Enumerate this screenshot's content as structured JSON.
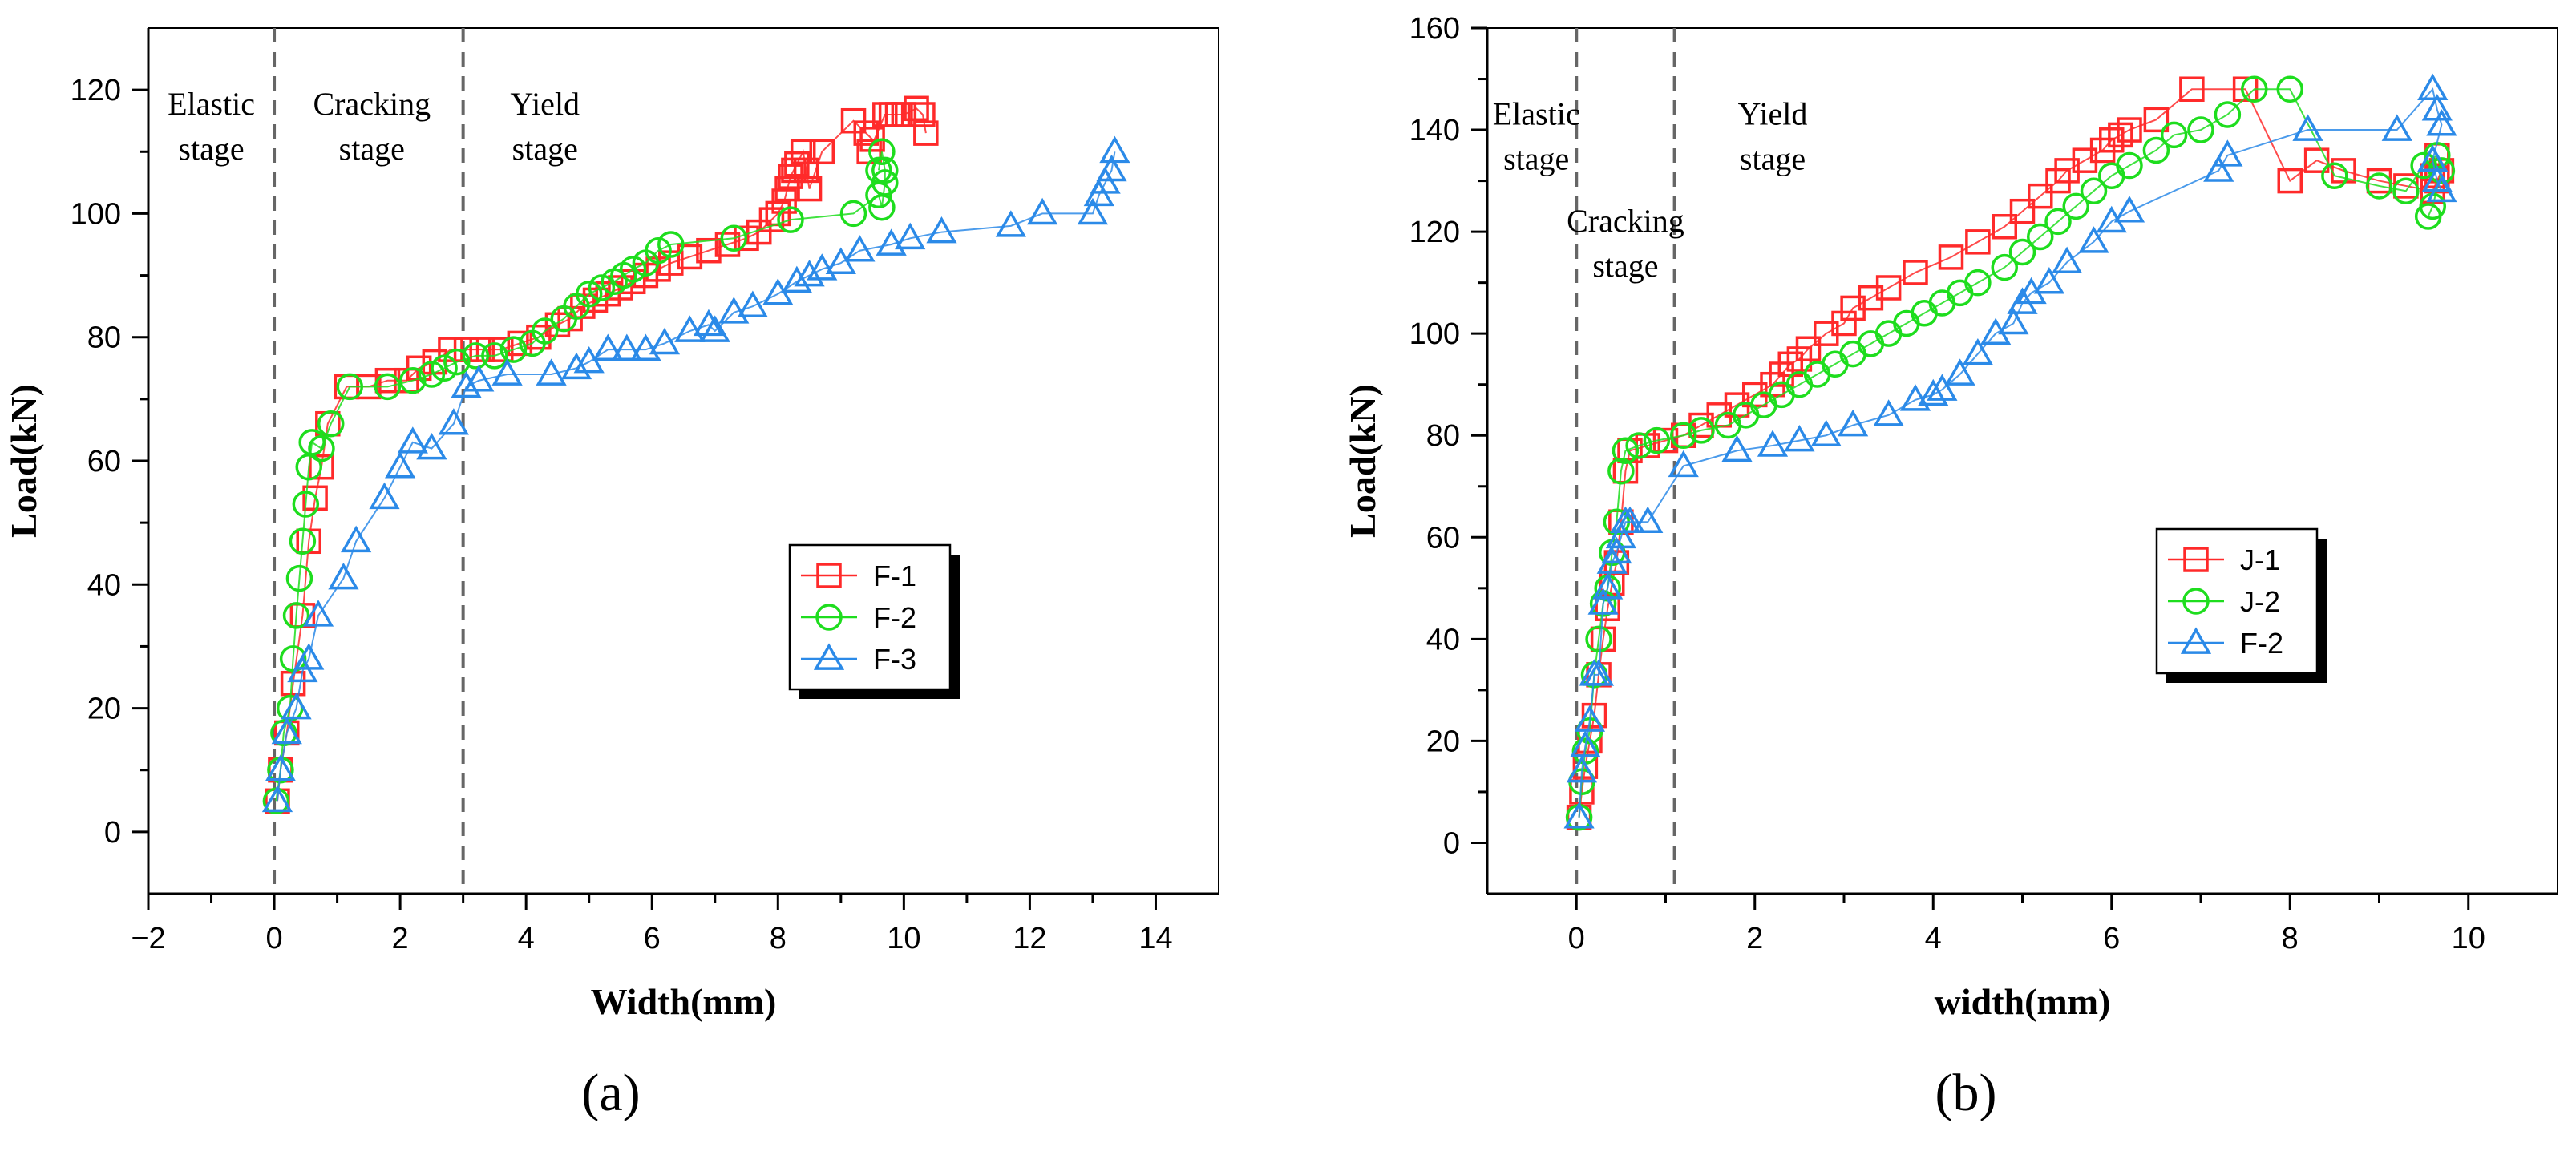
{
  "panels": [
    {
      "label": "(a)",
      "chart_data": {
        "type": "line",
        "xlabel": "Width(mm)",
        "ylabel": "Load(kN)",
        "xlim": [
          -2,
          15
        ],
        "ylim": [
          -10,
          130
        ],
        "xticks": [
          -2,
          0,
          2,
          4,
          6,
          8,
          10,
          12,
          14
        ],
        "yticks": [
          0,
          20,
          40,
          60,
          80,
          100,
          120
        ],
        "grid": false,
        "legend_position": "center-right",
        "stage_lines": [
          0,
          3
        ],
        "stage_labels": [
          {
            "lines": [
              "Elastic",
              "stage"
            ],
            "x": -1.0,
            "y": 116
          },
          {
            "lines": [
              "Cracking",
              "stage"
            ],
            "x": 1.55,
            "y": 116
          },
          {
            "lines": [
              "Yield",
              "stage"
            ],
            "x": 4.3,
            "y": 116
          }
        ],
        "series": [
          {
            "name": "F-1",
            "color": "#ff2a2a",
            "marker": "square",
            "x": [
              0.05,
              0.1,
              0.2,
              0.3,
              0.45,
              0.55,
              0.65,
              0.75,
              0.85,
              1.15,
              1.5,
              1.8,
              2.1,
              2.3,
              2.55,
              2.8,
              3.05,
              3.3,
              3.6,
              3.9,
              4.2,
              4.5,
              4.7,
              4.9,
              5.1,
              5.3,
              5.5,
              5.7,
              5.9,
              6.1,
              6.3,
              6.6,
              6.9,
              7.2,
              7.5,
              7.7,
              7.9,
              8.0,
              8.1,
              8.15,
              8.2,
              8.25,
              8.3,
              8.4,
              8.45,
              8.5,
              8.7,
              9.2,
              9.4,
              9.5,
              9.45,
              9.7,
              9.8,
              9.9,
              10.0,
              10.2,
              10.3,
              10.35
            ],
            "y": [
              5,
              10,
              16,
              24,
              35,
              47,
              54,
              59,
              66,
              72,
              72,
              73,
              73,
              75,
              76,
              78,
              78,
              78,
              78,
              79,
              80,
              82,
              83,
              85,
              86,
              87,
              88,
              89,
              90,
              91,
              92,
              93,
              94,
              95,
              96,
              97,
              99,
              100,
              102,
              104,
              106,
              107,
              108,
              110,
              107,
              104,
              110,
              115,
              113,
              112,
              110,
              116,
              116,
              116,
              116,
              117,
              116,
              113
            ]
          },
          {
            "name": "F-2",
            "color": "#1edd1e",
            "marker": "circle",
            "x": [
              0.03,
              0.1,
              0.15,
              0.25,
              0.3,
              0.35,
              0.4,
              0.45,
              0.5,
              0.55,
              0.6,
              0.75,
              0.9,
              1.2,
              1.8,
              2.2,
              2.5,
              2.7,
              2.9,
              3.2,
              3.5,
              3.8,
              4.1,
              4.3,
              4.6,
              4.8,
              5.0,
              5.2,
              5.4,
              5.55,
              5.7,
              5.9,
              6.1,
              6.3,
              7.3,
              8.2,
              9.2,
              9.6,
              9.65,
              9.7,
              9.7,
              9.65,
              9.6
            ],
            "y": [
              5,
              10,
              16,
              20,
              28,
              35,
              41,
              47,
              53,
              59,
              63,
              62,
              66,
              72,
              72,
              73,
              74,
              75,
              76,
              77,
              77,
              78,
              79,
              81,
              83,
              85,
              87,
              88,
              89,
              90,
              91,
              92,
              94,
              95,
              96,
              99,
              100,
              103,
              101,
              105,
              107,
              110,
              107
            ]
          },
          {
            "name": "F-3",
            "color": "#2b8ae8",
            "marker": "triangle",
            "x": [
              0.05,
              0.1,
              0.2,
              0.35,
              0.45,
              0.55,
              0.7,
              1.1,
              1.3,
              1.75,
              2.0,
              2.2,
              2.5,
              2.85,
              3.05,
              3.25,
              3.7,
              4.4,
              4.8,
              5.0,
              5.3,
              5.6,
              5.9,
              6.2,
              6.6,
              6.9,
              7.0,
              7.3,
              7.6,
              8.0,
              8.3,
              8.5,
              8.7,
              9.0,
              9.3,
              9.8,
              10.1,
              10.6,
              11.7,
              12.2,
              13.0,
              13.1,
              13.2,
              13.3,
              13.35
            ],
            "y": [
              5,
              10,
              16,
              20,
              26,
              28,
              35,
              41,
              47,
              54,
              59,
              63,
              62,
              66,
              72,
              73,
              74,
              74,
              75,
              76,
              78,
              78,
              78,
              79,
              81,
              82,
              81,
              84,
              85,
              87,
              89,
              90,
              91,
              92,
              94,
              95,
              96,
              97,
              98,
              100,
              100,
              103,
              105,
              107,
              110
            ]
          }
        ]
      }
    },
    {
      "label": "(b)",
      "chart_data": {
        "type": "line",
        "xlabel": "width(mm)",
        "ylabel": "Load(kN)",
        "xlim": [
          -1,
          11
        ],
        "ylim": [
          -10,
          160
        ],
        "xticks": [
          0,
          2,
          4,
          6,
          8,
          10
        ],
        "yticks": [
          0,
          20,
          40,
          60,
          80,
          100,
          120,
          140,
          160
        ],
        "grid": false,
        "legend_position": "center-right",
        "stage_lines": [
          0,
          1.1
        ],
        "stage_labels": [
          {
            "lines": [
              "Elastic",
              "stage"
            ],
            "x": -0.45,
            "y": 141
          },
          {
            "lines": [
              "Cracking",
              "stage"
            ],
            "x": 0.55,
            "y": 120
          },
          {
            "lines": [
              "Yield",
              "stage"
            ],
            "x": 2.2,
            "y": 141
          }
        ],
        "series": [
          {
            "name": "J-1",
            "color": "#ff2a2a",
            "marker": "square",
            "x": [
              0.03,
              0.06,
              0.1,
              0.15,
              0.2,
              0.25,
              0.3,
              0.35,
              0.4,
              0.45,
              0.5,
              0.55,
              0.6,
              0.8,
              1.0,
              1.2,
              1.4,
              1.6,
              1.8,
              2.0,
              2.2,
              2.3,
              2.4,
              2.5,
              2.6,
              2.8,
              3.0,
              3.1,
              3.3,
              3.5,
              3.8,
              4.2,
              4.5,
              4.8,
              5.0,
              5.2,
              5.4,
              5.5,
              5.7,
              5.9,
              6.0,
              6.1,
              6.2,
              6.5,
              6.9,
              7.5,
              8.0,
              8.3,
              8.6,
              9.0,
              9.3,
              9.6,
              9.65,
              9.7,
              9.65,
              9.6
            ],
            "y": [
              5,
              10,
              15,
              20,
              25,
              33,
              40,
              46,
              51,
              55,
              63,
              73,
              77,
              78,
              79,
              80,
              82,
              84,
              86,
              88,
              90,
              92,
              94,
              95,
              97,
              100,
              102,
              105,
              107,
              109,
              112,
              115,
              118,
              121,
              124,
              127,
              130,
              132,
              134,
              136,
              138,
              139,
              140,
              142,
              148,
              148,
              130,
              134,
              132,
              130,
              129,
              128,
              130,
              132,
              135,
              131
            ]
          },
          {
            "name": "J-2",
            "color": "#1edd1e",
            "marker": "circle",
            "x": [
              0.03,
              0.06,
              0.1,
              0.15,
              0.2,
              0.25,
              0.3,
              0.35,
              0.4,
              0.45,
              0.5,
              0.55,
              0.7,
              0.9,
              1.2,
              1.4,
              1.7,
              1.9,
              2.1,
              2.3,
              2.5,
              2.7,
              2.9,
              3.1,
              3.3,
              3.5,
              3.7,
              3.9,
              4.1,
              4.3,
              4.5,
              4.8,
              5.0,
              5.2,
              5.4,
              5.6,
              5.8,
              6.0,
              6.2,
              6.5,
              6.7,
              7.0,
              7.3,
              7.6,
              8.0,
              8.5,
              9.0,
              9.3,
              9.5,
              9.65,
              9.7,
              9.6,
              9.55
            ],
            "y": [
              5,
              12,
              18,
              22,
              33,
              40,
              47,
              50,
              57,
              63,
              73,
              77,
              78,
              79,
              80,
              81,
              82,
              84,
              86,
              88,
              90,
              92,
              94,
              96,
              98,
              100,
              102,
              104,
              106,
              108,
              110,
              113,
              116,
              119,
              122,
              125,
              128,
              131,
              133,
              136,
              139,
              140,
              143,
              148,
              148,
              131,
              129,
              128,
              133,
              135,
              132,
              125,
              123
            ]
          },
          {
            "name": "F-2",
            "color": "#2b8ae8",
            "marker": "triangle",
            "x": [
              0.03,
              0.06,
              0.1,
              0.15,
              0.2,
              0.25,
              0.3,
              0.35,
              0.4,
              0.45,
              0.5,
              0.55,
              0.6,
              0.8,
              1.2,
              1.8,
              2.2,
              2.5,
              2.8,
              3.1,
              3.5,
              3.8,
              4.0,
              4.1,
              4.3,
              4.5,
              4.7,
              4.9,
              5.0,
              5.1,
              5.3,
              5.5,
              5.8,
              6.0,
              6.2,
              7.2,
              7.3,
              8.2,
              9.2,
              9.6,
              9.65,
              9.7,
              9.6,
              9.65,
              9.7
            ],
            "y": [
              5,
              14,
              19,
              24,
              33,
              33,
              47,
              50,
              55,
              57,
              60,
              63,
              63,
              63,
              74,
              77,
              78,
              79,
              80,
              82,
              84,
              87,
              88,
              89,
              92,
              96,
              100,
              102,
              106,
              108,
              110,
              114,
              118,
              122,
              124,
              132,
              135,
              140,
              140,
              148,
              144,
              141,
              134,
              130,
              128
            ]
          }
        ]
      }
    }
  ]
}
